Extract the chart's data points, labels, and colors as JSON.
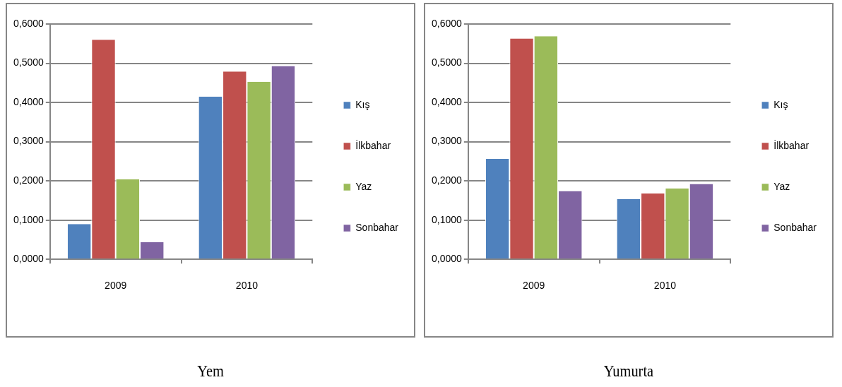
{
  "chart_data": [
    {
      "type": "bar",
      "title": "Yem",
      "categories": [
        "2009",
        "2010"
      ],
      "series": [
        {
          "name": "Kış",
          "color": "#4f81bd",
          "values": [
            0.09,
            0.415
          ]
        },
        {
          "name": "İlkbahar",
          "color": "#c0504d",
          "values": [
            0.56,
            0.479
          ]
        },
        {
          "name": "Yaz",
          "color": "#9bbb59",
          "values": [
            0.204,
            0.453
          ]
        },
        {
          "name": "Sonbahar",
          "color": "#8064a2",
          "values": [
            0.044,
            0.493
          ]
        }
      ],
      "ylim": [
        0,
        0.6
      ],
      "yticks": [
        {
          "value": 0,
          "label": "0,0000"
        },
        {
          "value": 0.1,
          "label": "0,1000"
        },
        {
          "value": 0.2,
          "label": "0,2000"
        },
        {
          "value": 0.3,
          "label": "0,3000"
        },
        {
          "value": 0.4,
          "label": "0,4000"
        },
        {
          "value": 0.5,
          "label": "0,5000"
        },
        {
          "value": 0.6,
          "label": "0,6000"
        }
      ],
      "grid": "y",
      "legend": "right"
    },
    {
      "type": "bar",
      "title": "Yumurta",
      "categories": [
        "2009",
        "2010"
      ],
      "series": [
        {
          "name": "Kış",
          "color": "#4f81bd",
          "values": [
            0.256,
            0.154
          ]
        },
        {
          "name": "İlkbahar",
          "color": "#c0504d",
          "values": [
            0.563,
            0.168
          ]
        },
        {
          "name": "Yaz",
          "color": "#9bbb59",
          "values": [
            0.569,
            0.181
          ]
        },
        {
          "name": "Sonbahar",
          "color": "#8064a2",
          "values": [
            0.174,
            0.192
          ]
        }
      ],
      "ylim": [
        0,
        0.6
      ],
      "yticks": [
        {
          "value": 0,
          "label": "0,0000"
        },
        {
          "value": 0.1,
          "label": "0,1000"
        },
        {
          "value": 0.2,
          "label": "0,2000"
        },
        {
          "value": 0.3,
          "label": "0,3000"
        },
        {
          "value": 0.4,
          "label": "0,4000"
        },
        {
          "value": 0.5,
          "label": "0,5000"
        },
        {
          "value": 0.6,
          "label": "0,6000"
        }
      ],
      "grid": "y",
      "legend": "right"
    }
  ]
}
